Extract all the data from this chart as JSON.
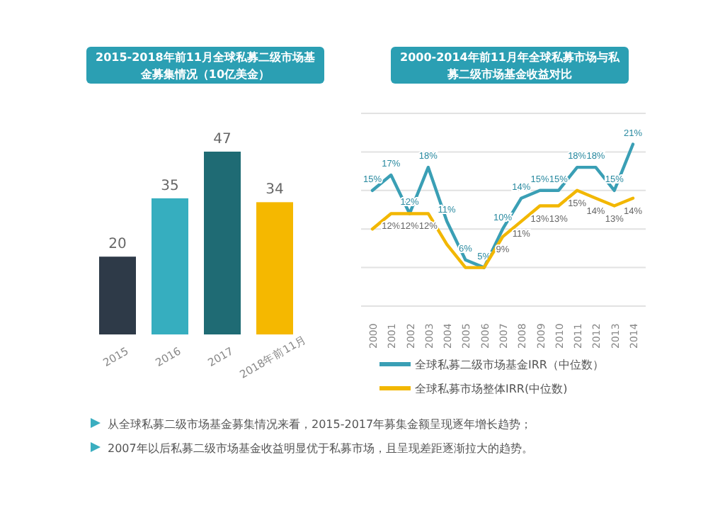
{
  "chart_data": [
    {
      "type": "bar",
      "title": "2015-2018年前11月全球私募二级市场基金募集情况（10亿美金）",
      "categories": [
        "2015",
        "2016",
        "2017",
        "2018年前11月"
      ],
      "values": [
        20,
        35,
        47,
        34
      ],
      "colors": [
        "#2e3a48",
        "#36aebf",
        "#1f6b74",
        "#f5b800"
      ],
      "data_labels": true,
      "annotations": [
        "从全球私募二级市场基金募集情况来看，2015-2017年募集金额呈现逐年增长趋势；",
        "2007年以后私募二级市场基金收益明显优于私募市场，且呈现差距逐渐拉大的趋势。"
      ]
    },
    {
      "type": "line",
      "title": "2000-2014年前11月年全球私募市场与私募二级市场基金收益对比",
      "categories": [
        "2000",
        "2001",
        "2002",
        "2003",
        "2004",
        "2005",
        "2006",
        "2007",
        "2008",
        "2009",
        "2010",
        "2011",
        "2012",
        "2013",
        "2014"
      ],
      "ylim": [
        0,
        25
      ],
      "yticks": [
        {
          "value": 0,
          "label": null
        },
        {
          "value": 5,
          "label": null
        },
        {
          "value": 10,
          "label": null
        },
        {
          "value": 15,
          "label": null
        },
        {
          "value": 20,
          "label": null
        },
        {
          "value": 25,
          "label": null
        }
      ],
      "grid": "y",
      "legend": "bottom",
      "tick_labels": "x",
      "series": [
        {
          "name": "全球私募二级市场基金IRR（中位数）",
          "color": "#3a9fb5",
          "values": [
            15,
            17,
            12,
            18,
            11,
            6,
            5,
            10,
            14,
            15,
            15,
            18,
            18,
            15,
            21
          ],
          "value_labels": [
            "15%",
            "17%",
            "12%",
            "18%",
            "11%",
            "6%",
            "5%",
            "10%",
            "14%",
            "15%",
            "15%",
            "18%",
            "18%",
            "15%",
            "21%"
          ]
        },
        {
          "name": "全球私募市场整体IRR(中位数)",
          "color": "#f2b700",
          "values": [
            10,
            12,
            12,
            12,
            8,
            5,
            5,
            9,
            11,
            13,
            13,
            15,
            14,
            13,
            14
          ],
          "value_labels": [
            null,
            "12%",
            "12%",
            "12%",
            null,
            null,
            null,
            "9%",
            "11%",
            "13%",
            "13%",
            "15%",
            "14%",
            "13%",
            "14%"
          ]
        }
      ]
    }
  ]
}
